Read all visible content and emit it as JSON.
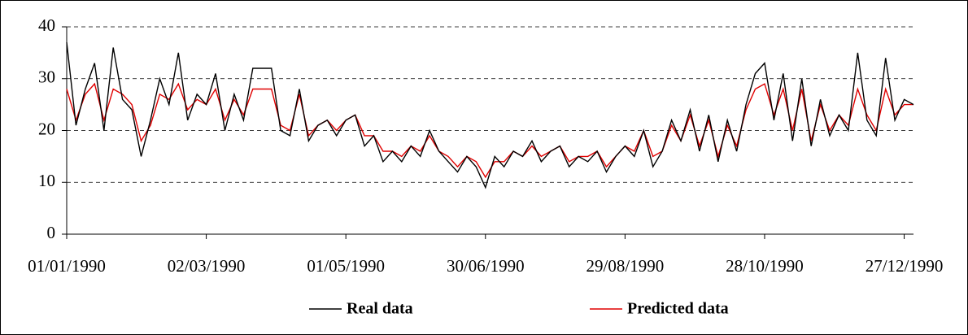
{
  "chart_data": {
    "type": "line",
    "x": [
      "01/01/1990",
      "05/01/1990",
      "09/01/1990",
      "13/01/1990",
      "17/01/1990",
      "21/01/1990",
      "25/01/1990",
      "29/01/1990",
      "02/02/1990",
      "06/02/1990",
      "10/02/1990",
      "14/02/1990",
      "18/02/1990",
      "22/02/1990",
      "26/02/1990",
      "02/03/1990",
      "06/03/1990",
      "10/03/1990",
      "14/03/1990",
      "18/03/1990",
      "22/03/1990",
      "26/03/1990",
      "30/03/1990",
      "03/04/1990",
      "07/04/1990",
      "11/04/1990",
      "15/04/1990",
      "19/04/1990",
      "23/04/1990",
      "27/04/1990",
      "01/05/1990",
      "05/05/1990",
      "09/05/1990",
      "13/05/1990",
      "17/05/1990",
      "21/05/1990",
      "25/05/1990",
      "29/05/1990",
      "02/06/1990",
      "06/06/1990",
      "10/06/1990",
      "14/06/1990",
      "18/06/1990",
      "22/06/1990",
      "26/06/1990",
      "30/06/1990",
      "04/07/1990",
      "08/07/1990",
      "12/07/1990",
      "16/07/1990",
      "20/07/1990",
      "24/07/1990",
      "28/07/1990",
      "01/08/1990",
      "05/08/1990",
      "09/08/1990",
      "13/08/1990",
      "17/08/1990",
      "21/08/1990",
      "25/08/1990",
      "29/08/1990",
      "02/09/1990",
      "06/09/1990",
      "10/09/1990",
      "14/09/1990",
      "18/09/1990",
      "22/09/1990",
      "26/09/1990",
      "30/09/1990",
      "04/10/1990",
      "08/10/1990",
      "12/10/1990",
      "16/10/1990",
      "20/10/1990",
      "24/10/1990",
      "28/10/1990",
      "01/11/1990",
      "05/11/1990",
      "09/11/1990",
      "13/11/1990",
      "17/11/1990",
      "21/11/1990",
      "25/11/1990",
      "29/11/1990",
      "03/12/1990",
      "07/12/1990",
      "11/12/1990",
      "15/12/1990",
      "19/12/1990",
      "23/12/1990",
      "27/12/1990",
      "31/12/1990"
    ],
    "series": [
      {
        "name": "Real data",
        "color": "#000000",
        "values": [
          37,
          21,
          28,
          33,
          20,
          36,
          26,
          24,
          15,
          22,
          30,
          25,
          35,
          22,
          27,
          25,
          31,
          20,
          27,
          22,
          32,
          32,
          32,
          20,
          19,
          28,
          18,
          21,
          22,
          19,
          22,
          23,
          17,
          19,
          14,
          16,
          14,
          17,
          15,
          20,
          16,
          14,
          12,
          15,
          13,
          9,
          15,
          13,
          16,
          15,
          18,
          14,
          16,
          17,
          13,
          15,
          14,
          16,
          12,
          15,
          17,
          15,
          20,
          13,
          16,
          22,
          18,
          24,
          16,
          23,
          14,
          22,
          16,
          25,
          31,
          33,
          22,
          31,
          18,
          30,
          17,
          26,
          19,
          23,
          20,
          35,
          22,
          19,
          34,
          22,
          26,
          25
        ]
      },
      {
        "name": "Predicted data",
        "color": "#e00000",
        "values": [
          28,
          22,
          27,
          29,
          22,
          28,
          27,
          25,
          18,
          21,
          27,
          26,
          29,
          24,
          26,
          25,
          28,
          22,
          26,
          23,
          28,
          28,
          28,
          21,
          20,
          27,
          19,
          21,
          22,
          20,
          22,
          23,
          19,
          19,
          16,
          16,
          15,
          17,
          16,
          19,
          16,
          15,
          13,
          15,
          14,
          11,
          14,
          14,
          16,
          15,
          17,
          15,
          16,
          17,
          14,
          15,
          15,
          16,
          13,
          15,
          17,
          16,
          20,
          15,
          16,
          21,
          18,
          23,
          17,
          22,
          15,
          21,
          17,
          24,
          28,
          29,
          23,
          28,
          20,
          28,
          18,
          25,
          20,
          23,
          21,
          28,
          23,
          20,
          28,
          23,
          25,
          25
        ]
      }
    ],
    "xlim": [
      "01/01/1990",
      "31/12/1990"
    ],
    "xticks": [
      "01/01/1990",
      "02/03/1990",
      "01/05/1990",
      "30/06/1990",
      "29/08/1990",
      "28/10/1990",
      "27/12/1990"
    ],
    "ylim": [
      0,
      40
    ],
    "yticks": [
      0,
      10,
      20,
      30,
      40
    ],
    "grid": true,
    "legend": "bottom"
  }
}
